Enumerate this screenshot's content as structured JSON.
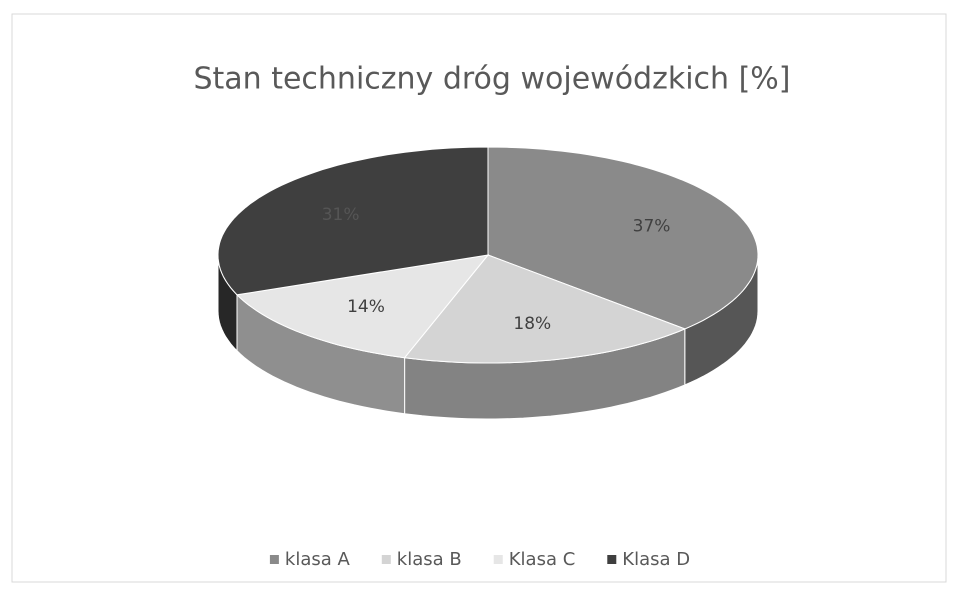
{
  "chart_data": {
    "type": "pie3d",
    "title": "Stan techniczny dróg wojewódzkich [%]",
    "categories": [
      "klasa A",
      "klasa B",
      "Klasa C",
      "Klasa D"
    ],
    "values": [
      37,
      18,
      14,
      31
    ],
    "value_labels": [
      "37%",
      "18%",
      "14%",
      "31%"
    ],
    "colors": [
      "#8a8a8a",
      "#d4d4d4",
      "#e6e6e6",
      "#3f3f3f"
    ],
    "legend": "bottom"
  }
}
